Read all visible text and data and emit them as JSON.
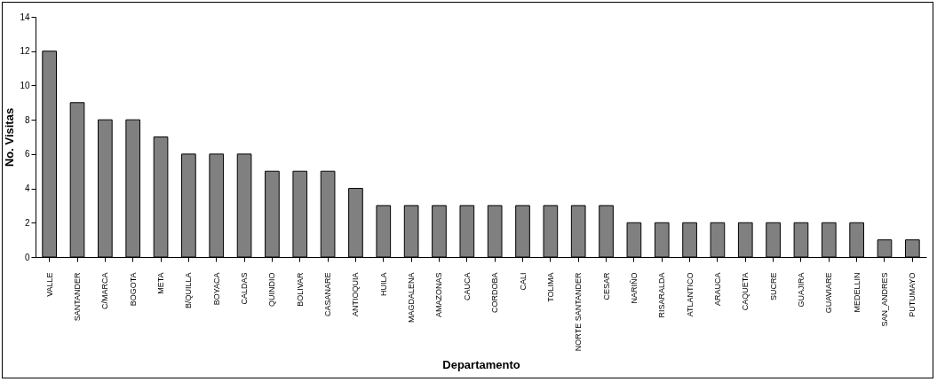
{
  "chart_data": {
    "type": "bar",
    "xlabel": "Departamento",
    "ylabel": "No. Visitas",
    "categories": [
      "VALLE",
      "SANTANDER",
      "C/MARCA",
      "BOGOTA",
      "META",
      "B/QUILLA",
      "BOYACA",
      "CALDAS",
      "QUINDIO",
      "BOLIVAR",
      "CASANARE",
      "ANTIOQUIA",
      "HUILA",
      "MAGDALENA",
      "AMAZONAS",
      "CAUCA",
      "CORDOBA",
      "CALI",
      "TOLIMA",
      "NORTE SANTANDER",
      "CESAR",
      "NARIÑO",
      "RISARALDA",
      "ATLANTICO",
      "ARAUCA",
      "CAQUETA",
      "SUCRE",
      "GUAJIRA",
      "GUAVIARE",
      "MEDELLIN",
      "SAN_ANDRES",
      "PUTUMAYO"
    ],
    "values": [
      12,
      9,
      8,
      8,
      7,
      6,
      6,
      6,
      5,
      5,
      5,
      4,
      3,
      3,
      3,
      3,
      3,
      3,
      3,
      3,
      3,
      2,
      2,
      2,
      2,
      2,
      2,
      2,
      2,
      2,
      1,
      1
    ],
    "color": "#808080",
    "ylim": [
      0,
      14
    ],
    "yticks": [
      0,
      2,
      4,
      6,
      8,
      10,
      12,
      14
    ],
    "grid": false
  }
}
